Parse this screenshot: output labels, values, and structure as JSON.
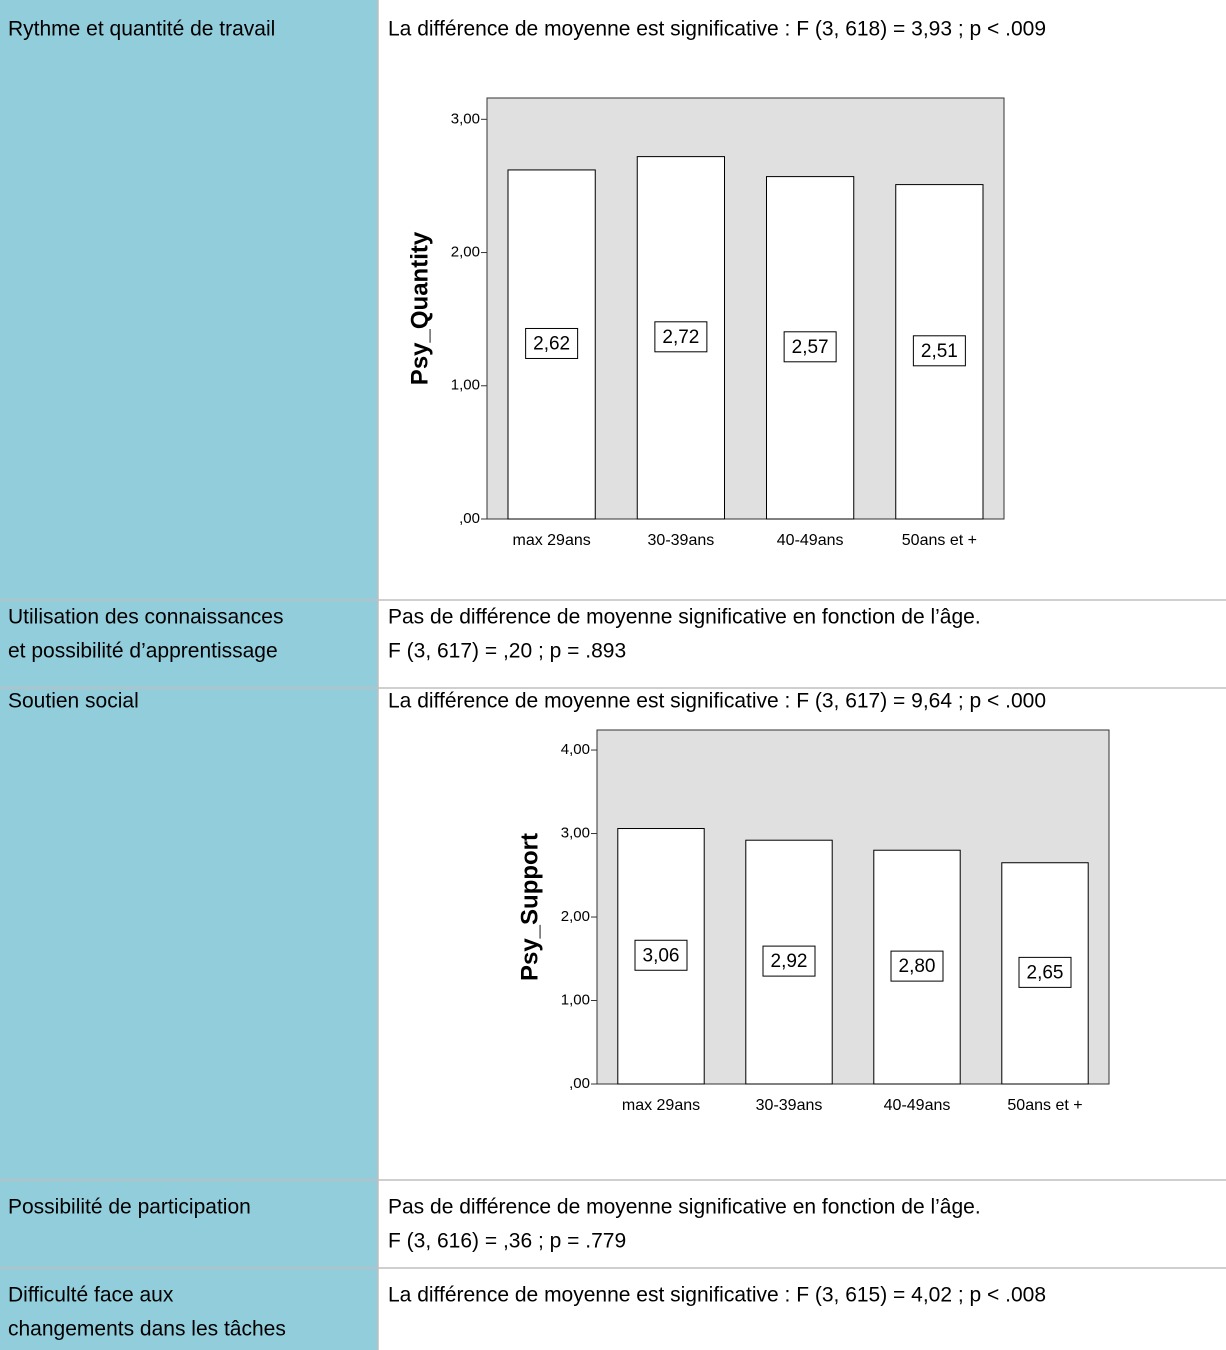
{
  "table": {
    "rows": [
      {
        "label": [
          "Rythme et quantité de travail"
        ],
        "text": [
          "La différence de moyenne est significative : F (3, 618) = 3,93 ; p < .009"
        ]
      },
      {
        "label": [
          "Utilisation des connaissances",
          "et possibilité d’apprentissage"
        ],
        "text": [
          "Pas de différence de moyenne significative en fonction de l’âge.",
          "F (3, 617) = ,20 ; p = .893"
        ]
      },
      {
        "label": [
          "Soutien social"
        ],
        "text": [
          "La différence de moyenne est significative : F (3, 617) = 9,64 ; p < .000"
        ]
      },
      {
        "label": [
          "Possibilité de participation"
        ],
        "text": [
          "Pas de différence de moyenne significative en fonction de l’âge.",
          "F (3, 616) = ,36 ; p = .779"
        ]
      },
      {
        "label": [
          "Difficulté face aux",
          "changements dans les tâches"
        ],
        "text": [
          "La différence de moyenne est significative : F (3, 615) = 4,02 ; p < .008"
        ]
      }
    ]
  },
  "chart_data": [
    {
      "type": "bar",
      "y_label": "Psy_Quantity",
      "categories": [
        "max 29ans",
        "30-39ans",
        "40-49ans",
        "50ans et +"
      ],
      "values": [
        2.62,
        2.72,
        2.57,
        2.51
      ],
      "value_labels": [
        "2,62",
        "2,72",
        "2,57",
        "2,51"
      ],
      "color": "#ffffff",
      "ylim": [
        0,
        3.16
      ],
      "yticks": [
        {
          "value": 0,
          "label": ",00"
        },
        {
          "value": 1,
          "label": "1,00"
        },
        {
          "value": 2,
          "label": "2,00"
        },
        {
          "value": 3,
          "label": "3,00"
        }
      ]
    },
    {
      "type": "bar",
      "y_label": "Psy_Support",
      "categories": [
        "max 29ans",
        "30-39ans",
        "40-49ans",
        "50ans et +"
      ],
      "values": [
        3.06,
        2.92,
        2.8,
        2.65
      ],
      "value_labels": [
        "3,06",
        "2,92",
        "2,80",
        "2,65"
      ],
      "color": "#ffffff",
      "ylim": [
        0,
        4.24
      ],
      "yticks": [
        {
          "value": 0,
          "label": ",00"
        },
        {
          "value": 1,
          "label": "1,00"
        },
        {
          "value": 2,
          "label": "2,00"
        },
        {
          "value": 3,
          "label": "3,00"
        },
        {
          "value": 4,
          "label": "4,00"
        }
      ]
    }
  ]
}
